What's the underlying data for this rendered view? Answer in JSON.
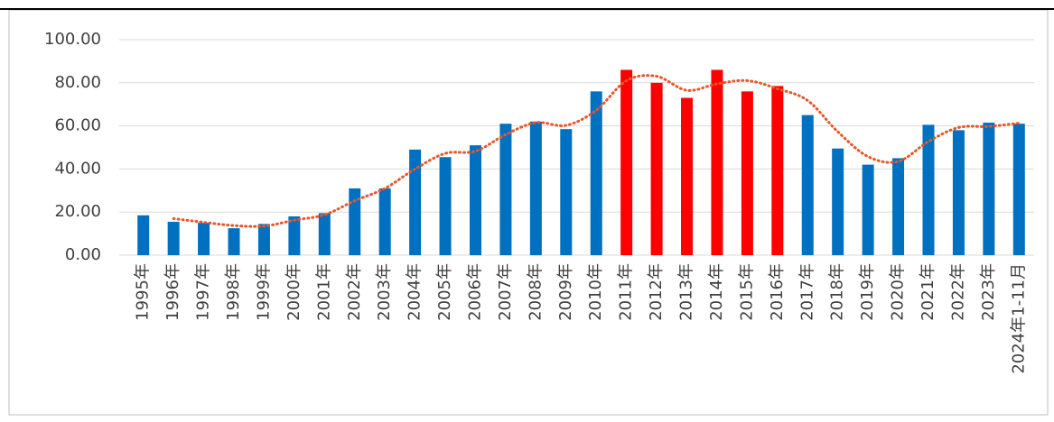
{
  "chart_data": {
    "type": "bar",
    "categories": [
      "1995年",
      "1996年",
      "1997年",
      "1998年",
      "1999年",
      "2000年",
      "2001年",
      "2002年",
      "2003年",
      "2004年",
      "2005年",
      "2006年",
      "2007年",
      "2008年",
      "2009年",
      "2010年",
      "2011年",
      "2012年",
      "2013年",
      "2014年",
      "2015年",
      "2016年",
      "2017年",
      "2018年",
      "2019年",
      "2020年",
      "2021年",
      "2022年",
      "2023年",
      "2024年1-11月"
    ],
    "values": [
      18.5,
      15.5,
      15,
      12.5,
      14.5,
      18,
      19.5,
      31,
      31,
      49,
      45.5,
      51,
      61,
      62,
      58.5,
      76,
      86,
      80,
      73,
      86,
      76,
      78.5,
      65,
      49.5,
      42,
      45,
      60.5,
      58,
      61.5,
      61
    ],
    "colors": [
      "#0070c0",
      "#0070c0",
      "#0070c0",
      "#0070c0",
      "#0070c0",
      "#0070c0",
      "#0070c0",
      "#0070c0",
      "#0070c0",
      "#0070c0",
      "#0070c0",
      "#0070c0",
      "#0070c0",
      "#0070c0",
      "#0070c0",
      "#0070c0",
      "#ff0000",
      "#ff0000",
      "#ff0000",
      "#ff0000",
      "#ff0000",
      "#ff0000",
      "#0070c0",
      "#0070c0",
      "#0070c0",
      "#0070c0",
      "#0070c0",
      "#0070c0",
      "#0070c0",
      "#0070c0"
    ],
    "trendline": {
      "color": "#e8562a",
      "values": [
        null,
        17,
        15.25,
        13.75,
        13.5,
        16.25,
        18.75,
        25.25,
        31,
        40,
        47.25,
        48.25,
        56,
        61.5,
        60.25,
        67.25,
        81,
        83,
        76.5,
        79.5,
        81,
        77.25,
        71.75,
        57.25,
        45.75,
        43.5,
        52.75,
        59.25,
        59.75,
        61.25
      ]
    },
    "ylim": [
      0,
      100
    ],
    "yticks": [
      {
        "value": 0,
        "label": "0.00"
      },
      {
        "value": 20,
        "label": "20.00"
      },
      {
        "value": 40,
        "label": "40.00"
      },
      {
        "value": 60,
        "label": "60.00"
      },
      {
        "value": 80,
        "label": "80.00"
      },
      {
        "value": 100,
        "label": "100.00"
      }
    ],
    "grid": true
  }
}
